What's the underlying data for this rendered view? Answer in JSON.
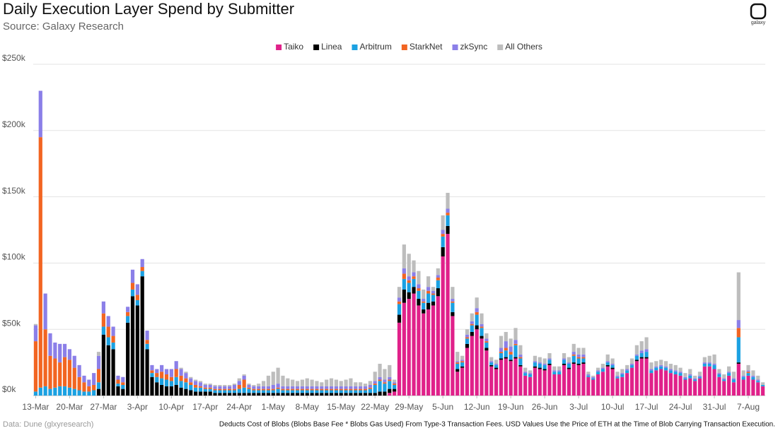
{
  "chart_data": {
    "type": "stacked_bar",
    "title": "Daily Execution Layer Spend by Submitter",
    "subtitle": "Source: Galaxy Research",
    "logo": "galaxy",
    "source": "Data: Dune (glxyresearch)",
    "note": "Deducts Cost of Blobs (Blobs Base Fee * Blobs Gas Used) From Type-3 Transaction Fees. USD Values Use the Price of ETH at the Time of Blob Carrying Transaction Execution.",
    "legend": "top",
    "grid": true,
    "ylim": [
      0,
      250
    ],
    "yticks": [
      {
        "value": 0,
        "label": "$0k"
      },
      {
        "value": 50,
        "label": "$50k"
      },
      {
        "value": 100,
        "label": "$100k"
      },
      {
        "value": 150,
        "label": "$150k"
      },
      {
        "value": 200,
        "label": "$200k"
      },
      {
        "value": 250,
        "label": "$250k"
      }
    ],
    "categories": [
      "13-Mar",
      null,
      null,
      null,
      null,
      null,
      null,
      "20-Mar",
      null,
      null,
      null,
      null,
      null,
      null,
      "27-Mar",
      null,
      null,
      null,
      null,
      null,
      null,
      "3-Apr",
      null,
      null,
      null,
      null,
      null,
      null,
      "10-Apr",
      null,
      null,
      null,
      null,
      null,
      null,
      "17-Apr",
      null,
      null,
      null,
      null,
      null,
      null,
      "24-Apr",
      null,
      null,
      null,
      null,
      null,
      null,
      "1-May",
      null,
      null,
      null,
      null,
      null,
      null,
      "8-May",
      null,
      null,
      null,
      null,
      null,
      null,
      "15-May",
      null,
      null,
      null,
      null,
      null,
      null,
      "22-May",
      null,
      null,
      null,
      null,
      null,
      null,
      "29-May",
      null,
      null,
      null,
      null,
      null,
      null,
      "5-Jun",
      null,
      null,
      null,
      null,
      null,
      null,
      "12-Jun",
      null,
      null,
      null,
      null,
      null,
      null,
      "19-Jun",
      null,
      null,
      null,
      null,
      null,
      null,
      "26-Jun",
      null,
      null,
      null,
      null,
      null,
      null,
      "3-Jul",
      null,
      null,
      null,
      null,
      null,
      null,
      "10-Jul",
      null,
      null,
      null,
      null,
      null,
      null,
      "17-Jul",
      null,
      null,
      null,
      null,
      null,
      null,
      "24-Jul",
      null,
      null,
      null,
      null,
      null,
      null,
      "31-Jul",
      null,
      null,
      null,
      null,
      null,
      null,
      "7-Aug",
      null,
      null,
      null
    ],
    "series": [
      {
        "name": "Taiko",
        "color": "#e0218a",
        "values": [
          0,
          0,
          0,
          0,
          0,
          0,
          0,
          0,
          0,
          0,
          0,
          0,
          0,
          0,
          0,
          0,
          0,
          0,
          0,
          0,
          0,
          0,
          0,
          0,
          0,
          0,
          0,
          0,
          0,
          0,
          0,
          0,
          0,
          0,
          0,
          0,
          0,
          0,
          0,
          0,
          0,
          0,
          0,
          0,
          0,
          0,
          0,
          0,
          0,
          0,
          0,
          0,
          0,
          0,
          0,
          0,
          0,
          0,
          0,
          0,
          0,
          0,
          0,
          0,
          0,
          0,
          0,
          0,
          0,
          0,
          0,
          0,
          0,
          2,
          3,
          55,
          70,
          73,
          77,
          68,
          62,
          65,
          68,
          75,
          105,
          122,
          60,
          18,
          21,
          36,
          45,
          50,
          43,
          34,
          22,
          20,
          27,
          28,
          26,
          28,
          22,
          15,
          14,
          21,
          20,
          19,
          23,
          16,
          16,
          23,
          20,
          24,
          23,
          24,
          14,
          12,
          16,
          18,
          22,
          20,
          13,
          14,
          17,
          21,
          26,
          28,
          28,
          17,
          19,
          20,
          19,
          17,
          16,
          15,
          12,
          13,
          11,
          13,
          22,
          22,
          20,
          14,
          11,
          15,
          10,
          24,
          12,
          15,
          12,
          10,
          7
        ]
      },
      {
        "name": "Linea",
        "color": "#000000",
        "values": [
          0,
          0,
          0,
          0,
          0,
          0,
          0,
          0,
          0,
          0,
          0,
          0,
          0,
          5,
          46,
          38,
          35,
          7,
          5,
          55,
          75,
          68,
          90,
          35,
          14,
          10,
          8,
          7,
          7,
          8,
          6,
          5,
          4,
          3,
          3,
          3,
          3,
          2,
          2,
          2,
          2,
          2,
          2,
          2,
          2,
          2,
          2,
          2,
          2,
          2,
          2,
          2,
          2,
          2,
          2,
          2,
          2,
          2,
          2,
          2,
          2,
          2,
          2,
          2,
          2,
          2,
          2,
          2,
          2,
          2,
          2,
          3,
          3,
          3,
          2,
          6,
          10,
          5,
          5,
          5,
          3,
          5,
          3,
          6,
          7,
          6,
          3,
          2,
          1,
          3,
          3,
          3,
          2,
          2,
          1,
          1,
          1,
          1,
          1,
          1,
          1,
          0,
          0,
          1,
          1,
          1,
          1,
          0,
          0,
          1,
          1,
          1,
          1,
          1,
          0,
          0,
          0,
          0,
          1,
          1,
          0,
          0,
          0,
          0,
          1,
          1,
          1,
          0,
          0,
          0,
          0,
          0,
          0,
          0,
          0,
          0,
          0,
          0,
          0,
          0,
          0,
          0,
          0,
          0,
          0,
          1,
          0,
          0,
          0,
          0,
          0
        ]
      },
      {
        "name": "Arbitrum",
        "color": "#1ba1e2",
        "values": [
          3,
          6,
          7,
          5,
          6,
          7,
          7,
          6,
          5,
          4,
          3,
          3,
          4,
          5,
          6,
          6,
          5,
          2,
          3,
          5,
          5,
          4,
          4,
          4,
          3,
          4,
          5,
          5,
          4,
          6,
          5,
          5,
          4,
          3,
          3,
          2,
          2,
          2,
          2,
          2,
          2,
          2,
          3,
          4,
          3,
          2,
          2,
          2,
          2,
          2,
          3,
          2,
          2,
          2,
          2,
          2,
          2,
          2,
          2,
          2,
          2,
          2,
          2,
          2,
          2,
          2,
          2,
          2,
          2,
          3,
          6,
          8,
          6,
          6,
          3,
          8,
          8,
          7,
          6,
          6,
          5,
          7,
          5,
          6,
          8,
          8,
          7,
          4,
          3,
          4,
          5,
          8,
          6,
          4,
          2,
          2,
          4,
          5,
          4,
          9,
          5,
          2,
          2,
          3,
          3,
          3,
          3,
          2,
          2,
          3,
          3,
          5,
          4,
          3,
          1,
          1,
          2,
          2,
          2,
          2,
          1,
          2,
          2,
          2,
          3,
          3,
          4,
          2,
          2,
          2,
          2,
          2,
          2,
          2,
          1,
          2,
          1,
          1,
          2,
          2,
          3,
          2,
          1,
          2,
          2,
          19,
          2,
          2,
          2,
          1,
          1
        ]
      },
      {
        "name": "StarkNet",
        "color": "#f26522",
        "values": [
          38,
          189,
          43,
          25,
          22,
          18,
          22,
          21,
          16,
          10,
          7,
          4,
          4,
          10,
          10,
          8,
          5,
          3,
          2,
          3,
          5,
          4,
          3,
          3,
          2,
          3,
          5,
          4,
          3,
          6,
          4,
          3,
          2,
          2,
          1,
          1,
          1,
          1,
          1,
          1,
          1,
          1,
          3,
          6,
          1,
          1,
          1,
          1,
          1,
          1,
          1,
          1,
          1,
          1,
          1,
          1,
          1,
          1,
          1,
          1,
          1,
          1,
          1,
          1,
          1,
          1,
          1,
          1,
          1,
          1,
          1,
          1,
          1,
          1,
          1,
          2,
          4,
          2,
          2,
          2,
          1,
          2,
          1,
          2,
          2,
          2,
          1,
          1,
          1,
          1,
          1,
          2,
          1,
          1,
          0,
          0,
          1,
          2,
          2,
          1,
          1,
          0,
          0,
          0,
          0,
          0,
          0,
          0,
          0,
          0,
          0,
          1,
          1,
          1,
          0,
          0,
          0,
          0,
          0,
          0,
          0,
          0,
          0,
          0,
          0,
          0,
          0,
          0,
          0,
          0,
          0,
          0,
          0,
          0,
          0,
          0,
          0,
          0,
          0,
          0,
          0,
          0,
          0,
          0,
          0,
          7,
          0,
          1,
          0,
          0,
          0
        ]
      },
      {
        "name": "zkSync",
        "color": "#8b7fe8",
        "values": [
          12,
          35,
          27,
          17,
          12,
          14,
          10,
          8,
          9,
          9,
          5,
          5,
          9,
          10,
          9,
          8,
          7,
          3,
          4,
          4,
          10,
          8,
          6,
          7,
          4,
          3,
          5,
          4,
          6,
          6,
          5,
          4,
          3,
          3,
          3,
          2,
          2,
          2,
          2,
          2,
          2,
          3,
          3,
          3,
          2,
          2,
          2,
          2,
          2,
          3,
          3,
          2,
          2,
          2,
          2,
          2,
          2,
          2,
          2,
          2,
          2,
          2,
          2,
          2,
          2,
          2,
          2,
          2,
          2,
          2,
          2,
          2,
          2,
          2,
          1,
          3,
          4,
          3,
          3,
          3,
          2,
          3,
          2,
          2,
          3,
          3,
          2,
          1,
          1,
          2,
          2,
          3,
          2,
          2,
          1,
          1,
          3,
          5,
          4,
          3,
          2,
          1,
          1,
          1,
          1,
          1,
          1,
          1,
          1,
          1,
          1,
          2,
          2,
          2,
          1,
          1,
          1,
          1,
          1,
          1,
          1,
          1,
          1,
          1,
          1,
          2,
          2,
          1,
          1,
          1,
          1,
          1,
          1,
          1,
          1,
          1,
          1,
          1,
          1,
          1,
          1,
          1,
          1,
          1,
          1,
          6,
          1,
          1,
          1,
          1,
          0
        ]
      },
      {
        "name": "All Others",
        "color": "#bdbdbd",
        "values": [
          1,
          0,
          0,
          0,
          0,
          0,
          0,
          0,
          0,
          0,
          0,
          0,
          0,
          3,
          0,
          0,
          0,
          0,
          0,
          0,
          0,
          0,
          0,
          0,
          0,
          0,
          0,
          0,
          0,
          0,
          1,
          1,
          1,
          1,
          1,
          1,
          1,
          1,
          1,
          1,
          1,
          1,
          2,
          1,
          1,
          1,
          2,
          4,
          8,
          10,
          12,
          8,
          6,
          5,
          4,
          5,
          6,
          5,
          4,
          3,
          5,
          6,
          5,
          4,
          5,
          6,
          3,
          3,
          2,
          3,
          7,
          10,
          8,
          9,
          2,
          8,
          18,
          17,
          9,
          10,
          7,
          8,
          3,
          5,
          11,
          12,
          9,
          7,
          3,
          4,
          6,
          8,
          8,
          4,
          3,
          3,
          9,
          7,
          6,
          9,
          7,
          3,
          2,
          4,
          4,
          4,
          4,
          3,
          3,
          4,
          4,
          6,
          5,
          5,
          2,
          1,
          2,
          3,
          5,
          4,
          3,
          3,
          3,
          4,
          7,
          7,
          9,
          5,
          4,
          4,
          4,
          4,
          4,
          3,
          3,
          4,
          2,
          3,
          4,
          5,
          7,
          3,
          3,
          4,
          5,
          36,
          4,
          4,
          4,
          3,
          2
        ]
      }
    ]
  }
}
